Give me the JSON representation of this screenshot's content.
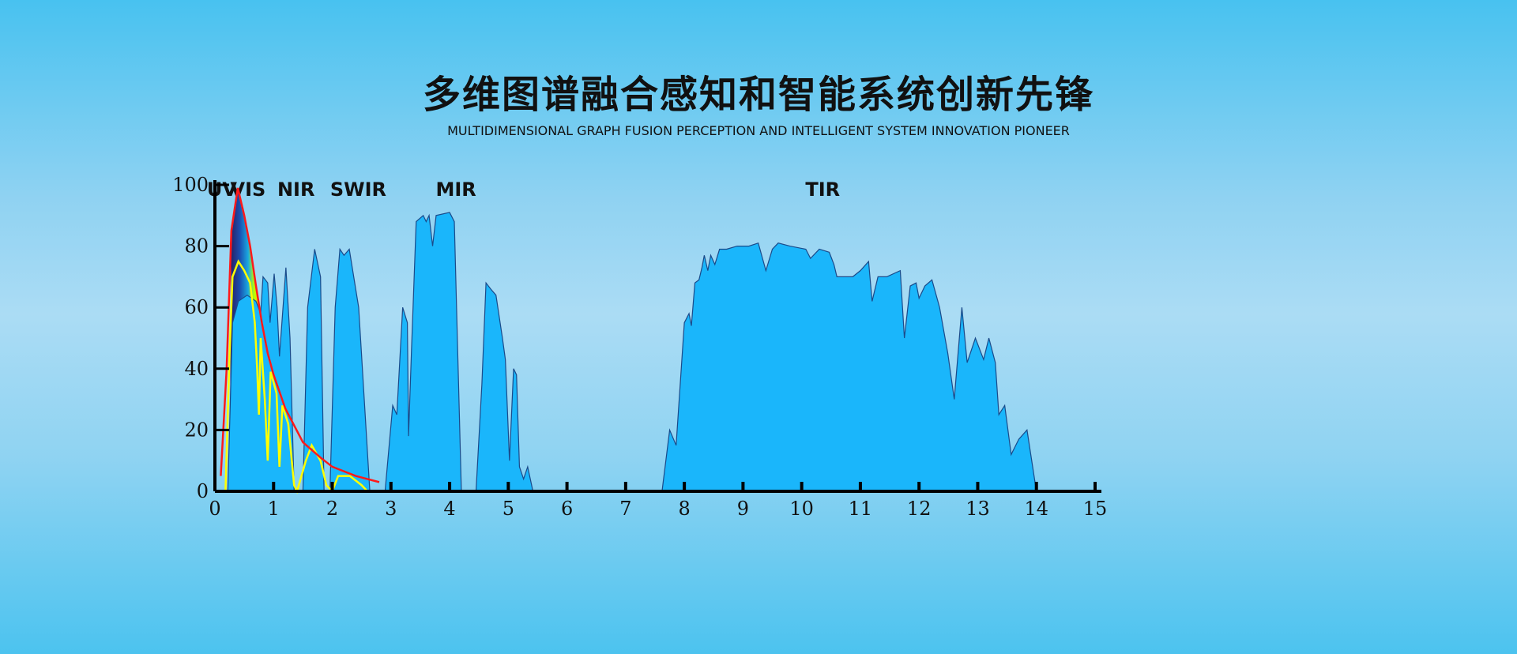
{
  "header": {
    "title": "多维图谱融合感知和智能系统创新先锋",
    "subtitle": "MULTIDIMENSIONAL GRAPH FUSION PERCEPTION AND INTELLIGENT SYSTEM INNOVATION PIONEER"
  },
  "colors": {
    "transmission_fill": "#1ab6fb",
    "solar_curve": "#ff1a1a",
    "ground_curve": "#ffff00"
  },
  "chart_data": {
    "type": "area",
    "title": "",
    "xlabel": "",
    "ylabel": "",
    "xlim": [
      0,
      15
    ],
    "ylim": [
      0,
      100
    ],
    "x_ticks": [
      0,
      1,
      2,
      3,
      4,
      5,
      6,
      7,
      8,
      9,
      10,
      11,
      12,
      13,
      14,
      15
    ],
    "y_ticks": [
      0,
      20,
      40,
      60,
      80,
      100
    ],
    "grid": false,
    "band_labels": [
      {
        "label": "UV",
        "x": 0.2
      },
      {
        "label": "VIS",
        "x": 0.6
      },
      {
        "label": "NIR",
        "x": 1.4
      },
      {
        "label": "SWIR",
        "x": 2.3
      },
      {
        "label": "MIR",
        "x": 4.1
      },
      {
        "label": "TIR",
        "x": 10.4
      }
    ],
    "series": [
      {
        "kind": "transmission",
        "points": [
          [
            0.22,
            0
          ],
          [
            0.3,
            55
          ],
          [
            0.4,
            62
          ],
          [
            0.55,
            64
          ],
          [
            0.7,
            62
          ],
          [
            0.78,
            58
          ],
          [
            0.82,
            70
          ],
          [
            0.9,
            68
          ],
          [
            0.94,
            55
          ],
          [
            1.01,
            71
          ],
          [
            1.06,
            60
          ],
          [
            1.1,
            44
          ],
          [
            1.21,
            73
          ],
          [
            1.28,
            50
          ],
          [
            1.35,
            0
          ],
          [
            1.5,
            0
          ],
          [
            1.58,
            60
          ],
          [
            1.7,
            79
          ],
          [
            1.8,
            70
          ],
          [
            1.86,
            0
          ],
          [
            1.96,
            0
          ],
          [
            2.05,
            60
          ],
          [
            2.13,
            79
          ],
          [
            2.2,
            77
          ],
          [
            2.29,
            79
          ],
          [
            2.45,
            60
          ],
          [
            2.64,
            0
          ],
          [
            2.9,
            0
          ],
          [
            3.03,
            28
          ],
          [
            3.1,
            25
          ],
          [
            3.2,
            60
          ],
          [
            3.28,
            55
          ],
          [
            3.3,
            18
          ],
          [
            3.35,
            46
          ],
          [
            3.43,
            88
          ],
          [
            3.55,
            90
          ],
          [
            3.6,
            88
          ],
          [
            3.65,
            90
          ],
          [
            3.71,
            80
          ],
          [
            3.77,
            90
          ],
          [
            4.0,
            91
          ],
          [
            4.08,
            88
          ],
          [
            4.2,
            0
          ],
          [
            4.45,
            0
          ],
          [
            4.55,
            35
          ],
          [
            4.62,
            68
          ],
          [
            4.7,
            66
          ],
          [
            4.79,
            64
          ],
          [
            4.9,
            50
          ],
          [
            4.95,
            43
          ],
          [
            5.02,
            10
          ],
          [
            5.09,
            40
          ],
          [
            5.14,
            38
          ],
          [
            5.19,
            8
          ],
          [
            5.26,
            4
          ],
          [
            5.33,
            8
          ],
          [
            5.42,
            0
          ],
          [
            7.62,
            0
          ],
          [
            7.75,
            20
          ],
          [
            7.86,
            15
          ],
          [
            8.0,
            55
          ],
          [
            8.08,
            58
          ],
          [
            8.12,
            54
          ],
          [
            8.18,
            68
          ],
          [
            8.25,
            69
          ],
          [
            8.3,
            73
          ],
          [
            8.34,
            77
          ],
          [
            8.4,
            72
          ],
          [
            8.45,
            77
          ],
          [
            8.52,
            74
          ],
          [
            8.6,
            79
          ],
          [
            8.72,
            79
          ],
          [
            8.9,
            80
          ],
          [
            9.1,
            80
          ],
          [
            9.26,
            81
          ],
          [
            9.39,
            72
          ],
          [
            9.5,
            79
          ],
          [
            9.6,
            81
          ],
          [
            9.8,
            80
          ],
          [
            10.07,
            79
          ],
          [
            10.15,
            76
          ],
          [
            10.3,
            79
          ],
          [
            10.47,
            78
          ],
          [
            10.55,
            74
          ],
          [
            10.6,
            70
          ],
          [
            10.87,
            70
          ],
          [
            11.0,
            72
          ],
          [
            11.14,
            75
          ],
          [
            11.2,
            62
          ],
          [
            11.3,
            70
          ],
          [
            11.45,
            70
          ],
          [
            11.68,
            72
          ],
          [
            11.75,
            50
          ],
          [
            11.85,
            67
          ],
          [
            11.95,
            68
          ],
          [
            12.0,
            63
          ],
          [
            12.1,
            67
          ],
          [
            12.22,
            69
          ],
          [
            12.35,
            60
          ],
          [
            12.49,
            45
          ],
          [
            12.6,
            30
          ],
          [
            12.73,
            60
          ],
          [
            12.82,
            42
          ],
          [
            12.96,
            50
          ],
          [
            13.1,
            43
          ],
          [
            13.19,
            50
          ],
          [
            13.3,
            42
          ],
          [
            13.36,
            25
          ],
          [
            13.46,
            28
          ],
          [
            13.57,
            12
          ],
          [
            13.7,
            17
          ],
          [
            13.84,
            20
          ],
          [
            14.0,
            0
          ]
        ]
      },
      {
        "kind": "solar-irradiance",
        "points": [
          [
            0.1,
            5
          ],
          [
            0.2,
            40
          ],
          [
            0.28,
            85
          ],
          [
            0.39,
            99
          ],
          [
            0.5,
            90
          ],
          [
            0.6,
            80
          ],
          [
            0.7,
            67
          ],
          [
            0.8,
            55
          ],
          [
            0.9,
            45
          ],
          [
            1.0,
            38
          ],
          [
            1.2,
            27
          ],
          [
            1.5,
            16
          ],
          [
            1.8,
            11
          ],
          [
            2.0,
            8
          ],
          [
            2.4,
            5
          ],
          [
            2.8,
            3
          ]
        ]
      },
      {
        "kind": "ground-irradiance",
        "points": [
          [
            0.18,
            0
          ],
          [
            0.25,
            45
          ],
          [
            0.3,
            70
          ],
          [
            0.4,
            75
          ],
          [
            0.5,
            72
          ],
          [
            0.6,
            68
          ],
          [
            0.68,
            55
          ],
          [
            0.72,
            40
          ],
          [
            0.75,
            25
          ],
          [
            0.78,
            50
          ],
          [
            0.85,
            30
          ],
          [
            0.9,
            10
          ],
          [
            0.95,
            39
          ],
          [
            1.05,
            32
          ],
          [
            1.1,
            8
          ],
          [
            1.15,
            28
          ],
          [
            1.25,
            22
          ],
          [
            1.35,
            2
          ],
          [
            1.4,
            0
          ],
          [
            1.55,
            10
          ],
          [
            1.65,
            15
          ],
          [
            1.8,
            10
          ],
          [
            1.9,
            2
          ],
          [
            2.0,
            0
          ],
          [
            2.1,
            5
          ],
          [
            2.3,
            5
          ],
          [
            2.5,
            2
          ],
          [
            2.6,
            0
          ]
        ]
      }
    ]
  }
}
